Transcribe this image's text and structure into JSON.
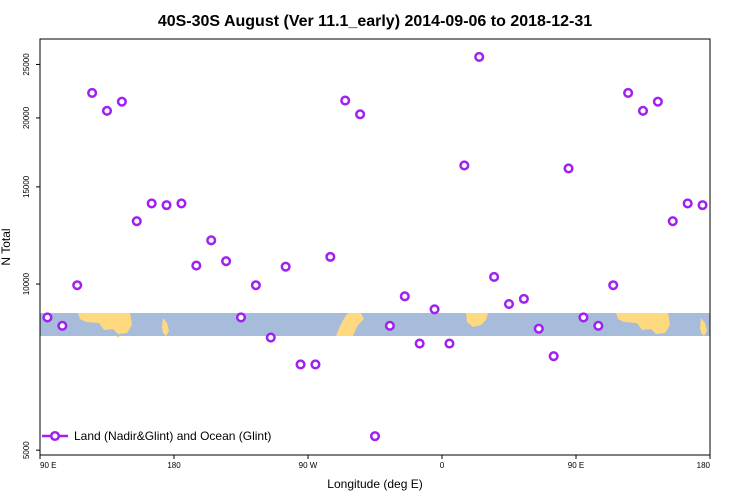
{
  "chart_data": {
    "type": "scatter",
    "title": "40S-30S August (Ver 11.1_early)   2014-09-06 to 2018-12-31",
    "xlabel": "Longitude (deg E)",
    "ylabel": "N Total",
    "x_ticks": [
      {
        "value": 90,
        "label": "90 E"
      },
      {
        "value": 180,
        "label": "180"
      },
      {
        "value": 270,
        "label": "90 W"
      },
      {
        "value": 360,
        "label": "0"
      },
      {
        "value": 450,
        "label": "90 E"
      },
      {
        "value": 540,
        "label": "180"
      }
    ],
    "y_ticks": [
      5000,
      10000,
      15000,
      20000,
      25000
    ],
    "xlim": [
      90,
      540
    ],
    "ylim": [
      4900,
      27800
    ],
    "y_scale": "log",
    "legend": {
      "position": "bottom-left",
      "entries": [
        "Land (Nadir&Glint) and Ocean (Glint)"
      ]
    },
    "series": [
      {
        "name": "Land (Nadir&Glint) and Ocean (Glint)",
        "color": "#a020f0",
        "x": [
          95,
          105,
          115,
          125,
          135,
          145,
          155,
          165,
          175,
          185,
          195,
          205,
          215,
          225,
          235,
          245,
          255,
          265,
          275,
          285,
          295,
          305,
          315,
          325,
          335,
          345,
          355,
          365,
          375,
          385,
          395,
          405,
          415,
          425,
          435,
          445,
          455,
          465,
          475,
          485,
          495,
          505,
          515,
          525,
          535
        ],
        "y": [
          8700,
          8400,
          9950,
          22200,
          20600,
          21400,
          13000,
          14000,
          13900,
          14000,
          10800,
          12000,
          11000,
          8700,
          9950,
          8000,
          10750,
          7150,
          7150,
          11200,
          21500,
          20300,
          5300,
          8400,
          9500,
          7800,
          9000,
          7800,
          16400,
          25800,
          10300,
          9200,
          9400,
          8300,
          7400,
          16200,
          8700,
          8400,
          9950,
          22200,
          20600,
          21400,
          13000,
          14000,
          13900
        ]
      }
    ],
    "map_strip": {
      "ocean_color": "#a7bbdb",
      "land_color": "#ffd980"
    }
  }
}
